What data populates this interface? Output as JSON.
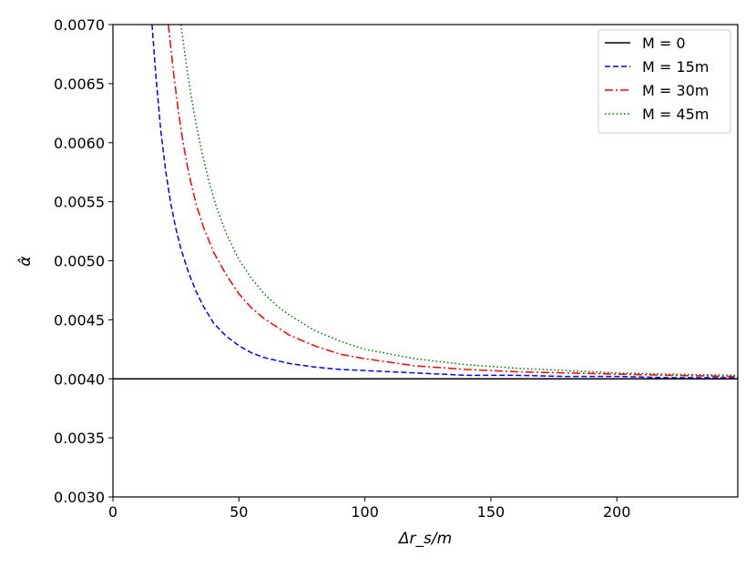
{
  "chart_data": {
    "type": "line",
    "xlabel": "Δr_s/m",
    "ylabel": "α̂",
    "xlim": [
      0,
      248
    ],
    "ylim": [
      0.003,
      0.007
    ],
    "x_ticks": [
      0,
      50,
      100,
      150,
      200
    ],
    "x_tick_labels": [
      "0",
      "50",
      "100",
      "150",
      "200"
    ],
    "y_ticks": [
      0.003,
      0.0035,
      0.004,
      0.0045,
      0.005,
      0.0055,
      0.006,
      0.0065,
      0.007
    ],
    "y_tick_labels": [
      "0.0030",
      "0.0035",
      "0.0040",
      "0.0045",
      "0.0050",
      "0.0055",
      "0.0060",
      "0.0065",
      "0.0070"
    ],
    "grid": false,
    "legend_position": "top-right",
    "series": [
      {
        "name": "M = 0",
        "color": "#000000",
        "dash": "solid",
        "x": [
          0,
          248
        ],
        "y": [
          0.004,
          0.004
        ]
      },
      {
        "name": "M = 15m",
        "color": "#0000ff",
        "dash": "dashed",
        "x": [
          15.5,
          17,
          19,
          21,
          23,
          25,
          27,
          30,
          33,
          36,
          40,
          45,
          50,
          55,
          60,
          70,
          80,
          90,
          100,
          120,
          140,
          160,
          180,
          200,
          220,
          248
        ],
        "y": [
          0.007,
          0.00658,
          0.0061,
          0.00575,
          0.00548,
          0.00527,
          0.0051,
          0.0049,
          0.00474,
          0.00461,
          0.00447,
          0.00436,
          0.00428,
          0.00422,
          0.00418,
          0.00413,
          0.0041,
          0.00408,
          0.00407,
          0.00405,
          0.00403,
          0.00403,
          0.00402,
          0.00402,
          0.00401,
          0.00401
        ]
      },
      {
        "name": "M = 30m",
        "color": "#ff0000",
        "dash": "dashdot",
        "x": [
          22,
          24,
          26,
          28,
          30,
          33,
          36,
          40,
          45,
          50,
          55,
          60,
          70,
          80,
          90,
          100,
          120,
          140,
          160,
          180,
          200,
          220,
          248
        ],
        "y": [
          0.007,
          0.0066,
          0.00626,
          0.00598,
          0.00575,
          0.00548,
          0.00528,
          0.00507,
          0.00488,
          0.00472,
          0.0046,
          0.00451,
          0.00437,
          0.00428,
          0.00421,
          0.00417,
          0.00411,
          0.00408,
          0.00406,
          0.00405,
          0.00404,
          0.00403,
          0.00402
        ]
      },
      {
        "name": "M = 45m",
        "color": "#008000",
        "dash": "dotted",
        "x": [
          27,
          29,
          31,
          33,
          35,
          38,
          41,
          45,
          50,
          55,
          60,
          65,
          70,
          80,
          90,
          100,
          120,
          140,
          160,
          180,
          200,
          220,
          248
        ],
        "y": [
          0.007,
          0.00668,
          0.0064,
          0.00616,
          0.00595,
          0.00568,
          0.00546,
          0.00523,
          0.00501,
          0.00485,
          0.00472,
          0.00462,
          0.00454,
          0.00441,
          0.00432,
          0.00425,
          0.00417,
          0.00412,
          0.00409,
          0.00407,
          0.00405,
          0.00404,
          0.00403
        ]
      }
    ]
  }
}
